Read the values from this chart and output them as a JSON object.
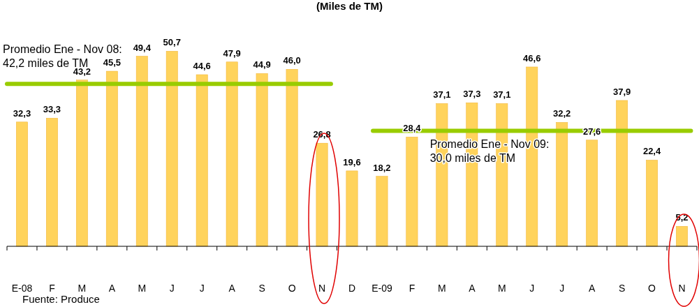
{
  "chart_data": {
    "type": "bar",
    "title": "(Miles de TM)",
    "categories": [
      "E-08",
      "F",
      "M",
      "A",
      "M",
      "J",
      "J",
      "A",
      "S",
      "O",
      "N",
      "D",
      "E-09",
      "F",
      "M",
      "A",
      "M",
      "J",
      "J",
      "A",
      "S",
      "O",
      "N"
    ],
    "series": [
      {
        "color": "#ffd35c",
        "values": [
          32.3,
          33.3,
          43.2,
          45.5,
          49.4,
          50.7,
          44.6,
          47.9,
          44.9,
          46.0,
          26.8,
          19.6,
          18.2,
          28.4,
          37.1,
          37.3,
          37.1,
          46.6,
          32.2,
          27.6,
          37.9,
          22.4,
          5.2
        ],
        "value_labels": [
          "32,3",
          "33,3",
          "43,2",
          "45,5",
          "49,4",
          "50,7",
          "44,6",
          "47,9",
          "44,9",
          "46,0",
          "26,8",
          "19,6",
          "18,2",
          "28,4",
          "37,1",
          "37,3",
          "37,1",
          "46,6",
          "32,2",
          "27,6",
          "37,9",
          "22,4",
          "5,2"
        ]
      }
    ],
    "ref_lines": [
      {
        "axis": "y",
        "value": 42.2,
        "label": "Promedio Ene - Nov 08:\n42,2 miles de TM",
        "color": "#99cc00"
      },
      {
        "axis": "y",
        "value": 30.0,
        "label": "Promedio Ene - Nov 09:\n30,0 miles de TM",
        "color": "#99cc00"
      }
    ],
    "annotations": [
      "Fuente: Produce"
    ]
  }
}
